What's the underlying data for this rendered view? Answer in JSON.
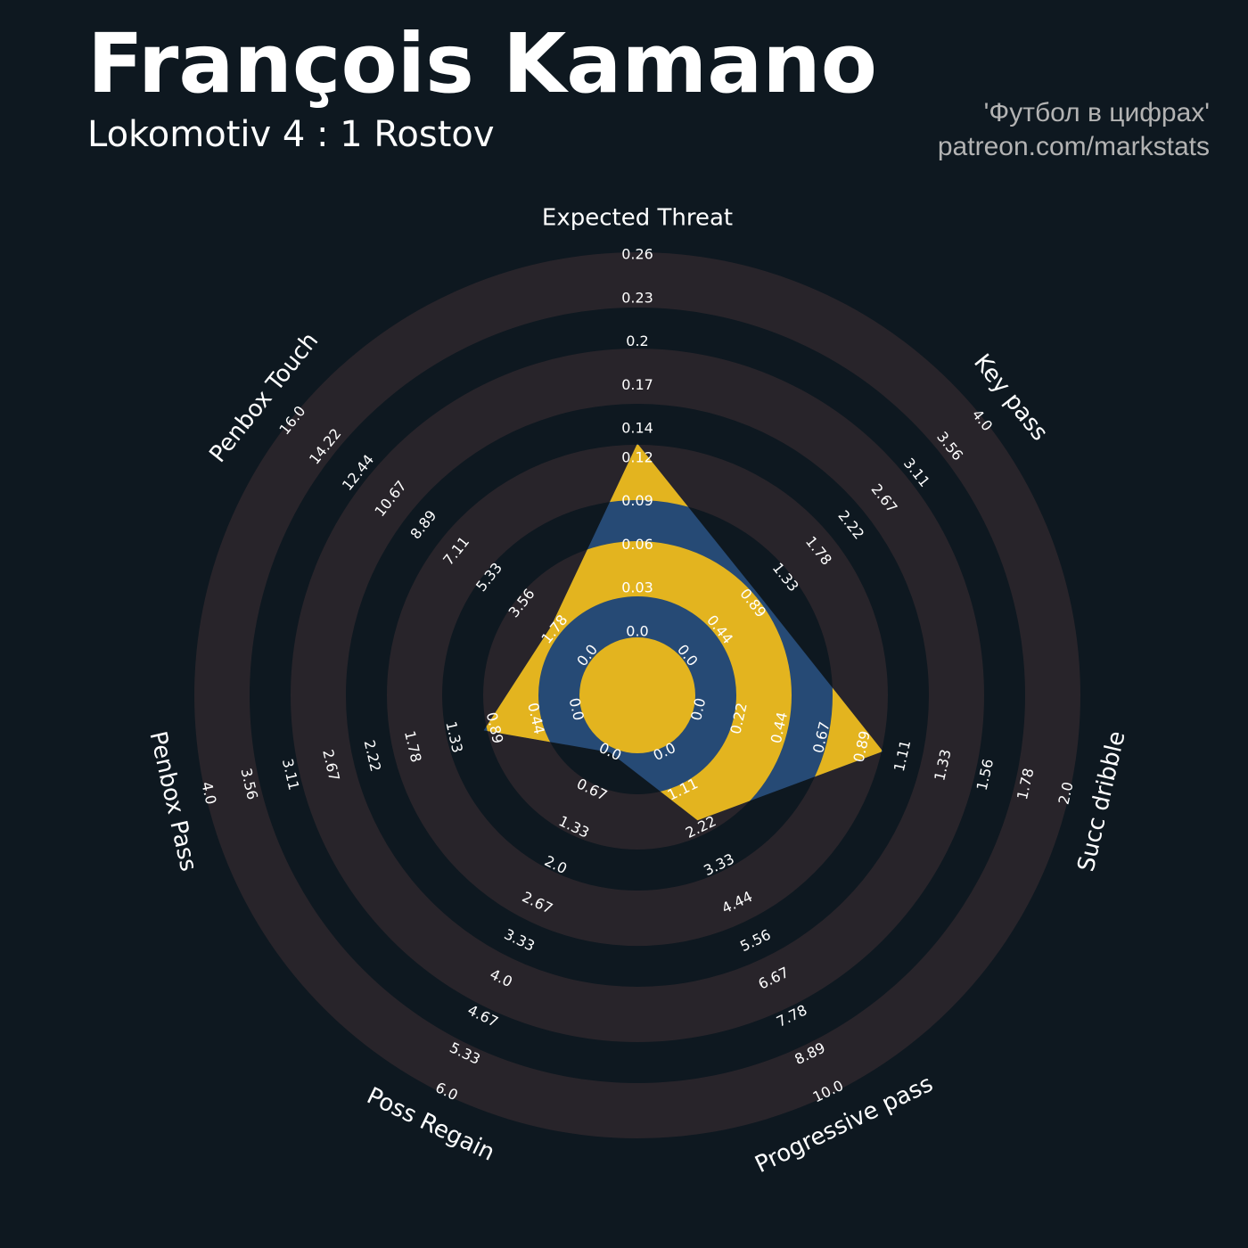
{
  "header": {
    "title": "François Kamano",
    "subtitle": "Lokomotiv 4 : 1 Rostov",
    "credit": "'Футбол в цифрах'",
    "link": "patreon.com/markstats"
  },
  "chart_data": {
    "type": "radar",
    "params": [
      "Expected Threat",
      "Key pass",
      "Succ dribble",
      "Progressive pass",
      "Poss Regain",
      "Penbox Pass",
      "Penbox Touch"
    ],
    "ranges": [
      [
        0,
        0.26
      ],
      [
        0,
        4
      ],
      [
        0,
        2
      ],
      [
        0,
        10
      ],
      [
        0,
        6
      ],
      [
        0,
        4
      ],
      [
        0,
        16
      ]
    ],
    "ticks": [
      [
        {
          "value": 0,
          "label": "0.0"
        },
        0.03,
        0.06,
        0.09,
        0.12,
        0.14,
        0.17,
        0.2,
        0.23,
        0.26
      ],
      [
        {
          "value": 0,
          "label": "0.0"
        },
        0.44,
        0.89,
        1.33,
        1.78,
        2.22,
        2.67,
        3.11,
        3.56,
        {
          "value": 4,
          "label": "4.0"
        }
      ],
      [
        {
          "value": 0,
          "label": "0.0"
        },
        0.22,
        0.44,
        0.67,
        0.89,
        1.11,
        1.33,
        1.56,
        1.78,
        {
          "value": 2,
          "label": "2.0"
        }
      ],
      [
        {
          "value": 0,
          "label": "0.0"
        },
        1.11,
        2.22,
        3.33,
        4.44,
        5.56,
        6.67,
        7.78,
        8.89,
        {
          "value": 10,
          "label": "10.0"
        }
      ],
      [
        {
          "value": 0,
          "label": "0.0"
        },
        0.67,
        1.33,
        {
          "value": 2,
          "label": "2.0"
        },
        2.67,
        3.33,
        {
          "value": 4,
          "label": "4.0"
        },
        4.67,
        5.33,
        {
          "value": 6,
          "label": "6.0"
        }
      ],
      [
        {
          "value": 0,
          "label": "0.0"
        },
        0.44,
        0.89,
        1.33,
        1.78,
        2.22,
        2.67,
        3.11,
        3.56,
        {
          "value": 4,
          "label": "4.0"
        }
      ],
      [
        {
          "value": 0,
          "label": "0.0"
        },
        1.78,
        3.56,
        5.33,
        7.11,
        8.89,
        10.67,
        12.44,
        14.22,
        {
          "value": 16,
          "label": "16.0"
        }
      ]
    ],
    "values": [
      0.13,
      1,
      1,
      2,
      0,
      1,
      2
    ],
    "color": "#264a75",
    "highlight_color": "#e3b41f",
    "ring_color": "#28242a"
  }
}
